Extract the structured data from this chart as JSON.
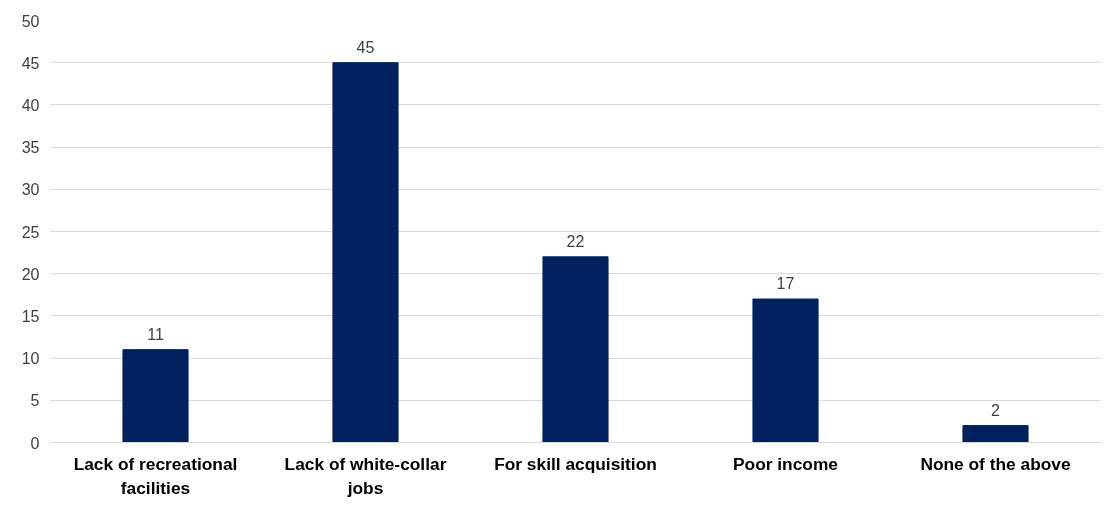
{
  "chart_data": {
    "type": "bar",
    "categories": [
      "Lack of recreational facilities",
      "Lack of white-collar jobs",
      "For skill acquisition",
      "Poor income",
      "None of the above"
    ],
    "values": [
      11,
      45,
      22,
      17,
      2
    ],
    "color": "#002060",
    "ylim": [
      0,
      50
    ],
    "yticks": [
      0,
      5,
      10,
      15,
      20,
      25,
      30,
      35,
      40,
      45,
      50
    ],
    "grid": "y",
    "data_labels": true
  }
}
